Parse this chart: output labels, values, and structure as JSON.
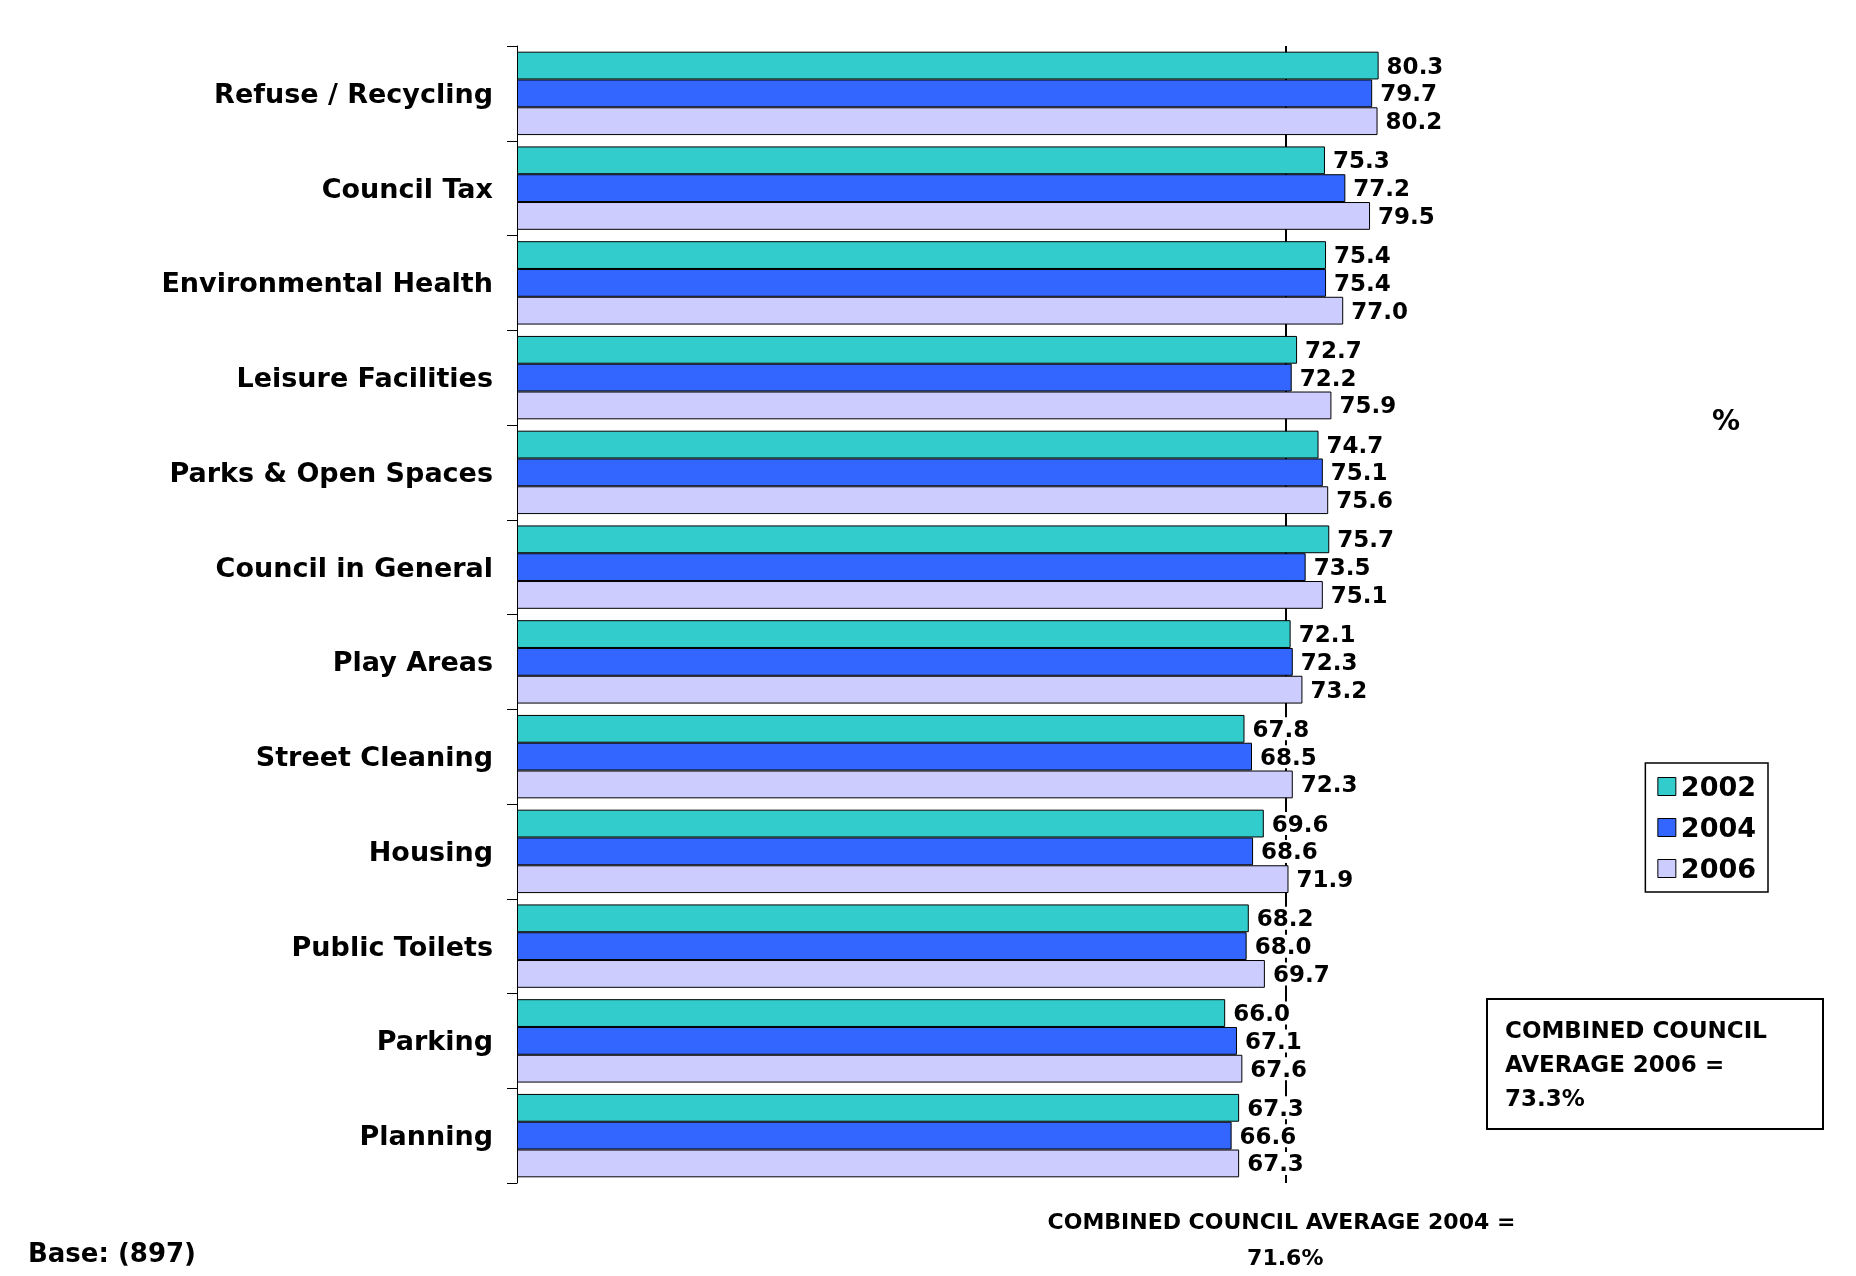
{
  "chart_data": {
    "type": "bar",
    "orientation": "horizontal",
    "categories": [
      "Refuse / Recycling",
      "Council Tax",
      "Environmental Health",
      "Leisure Facilities",
      "Parks & Open Spaces",
      "Council in General",
      "Play Areas",
      "Street Cleaning",
      "Housing",
      "Public Toilets",
      "Parking",
      "Planning"
    ],
    "series": [
      {
        "name": "2002",
        "color": "#33cccc",
        "values": [
          80.3,
          75.3,
          75.4,
          72.7,
          74.7,
          75.7,
          72.1,
          67.8,
          69.6,
          68.2,
          66.0,
          67.3
        ],
        "value_labels": [
          "80.3",
          "75.3",
          "75.4",
          "72.7",
          "74.7",
          "75.7",
          "72.1",
          "67.8",
          "69.6",
          "68.2",
          "66.0",
          "67.3"
        ]
      },
      {
        "name": "2004",
        "color": "#3366ff",
        "values": [
          79.7,
          77.2,
          75.4,
          72.2,
          75.1,
          73.5,
          72.3,
          68.5,
          68.6,
          68.0,
          67.1,
          66.6
        ],
        "value_labels": [
          "79.7",
          "77.2",
          "75.4",
          "72.2",
          "75.1",
          "73.5",
          "72.3",
          "68.5",
          "68.6",
          "68.0",
          "67.1",
          "66.6"
        ]
      },
      {
        "name": "2006",
        "color": "#ccccff",
        "values": [
          80.2,
          79.5,
          77.0,
          75.9,
          75.6,
          75.1,
          73.2,
          72.3,
          71.9,
          69.7,
          67.6,
          67.3
        ],
        "value_labels": [
          "80.2",
          "79.5",
          "77.0",
          "75.9",
          "75.6",
          "75.1",
          "73.2",
          "72.3",
          "71.9",
          "69.7",
          "67.6",
          "67.3"
        ]
      }
    ],
    "legend": "right",
    "tick_labels": "y",
    "ref_lines": [
      {
        "axis": "x",
        "value": 71.6,
        "label": "COMBINED COUNCIL AVERAGE 2004 = 71.6%",
        "color": "#000000"
      }
    ],
    "annotations": [
      "COMBINED COUNCIL AVERAGE 2006 = 73.3%",
      "Base: (897)",
      "%"
    ]
  }
}
